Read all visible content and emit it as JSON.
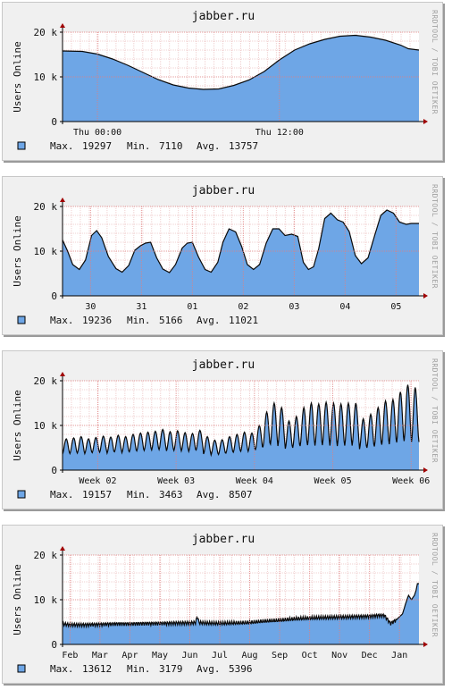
{
  "chart_data": [
    {
      "type": "area",
      "title": "jabber.ru",
      "ylabel": "Users Online",
      "watermark": "RRDTOOL / TOBI OETIKER",
      "ylim": [
        0,
        20000
      ],
      "y_ticks": [
        "0",
        "10 k",
        "20 k"
      ],
      "grid": true,
      "xlim": [
        -1.3,
        22.2
      ],
      "x_ticks": [
        {
          "label": "Thu 00:00",
          "pos": 1.0
        },
        {
          "label": "Thu 12:00",
          "pos": 13.0
        }
      ],
      "x_unit": "hours",
      "series": [
        {
          "name": "",
          "color": "#6ea6e6",
          "x": [
            -1.3,
            0,
            1,
            2,
            3,
            4,
            5,
            6,
            7,
            8,
            9,
            10,
            11,
            12,
            13,
            14,
            15,
            16,
            17,
            18,
            19,
            20,
            21,
            21.5,
            22.2
          ],
          "y": [
            15800,
            15700,
            15100,
            14000,
            12600,
            11000,
            9400,
            8200,
            7500,
            7200,
            7300,
            8100,
            9300,
            11200,
            13800,
            16000,
            17400,
            18400,
            19100,
            19300,
            18900,
            18200,
            17100,
            16300,
            16000
          ]
        }
      ],
      "legend": {
        "swatch_color": "#6ea6e6",
        "max_label": "Max.",
        "max": "19297",
        "min_label": "Min.",
        "min": "7110",
        "avg_label": "Avg.",
        "avg": "13757"
      }
    },
    {
      "type": "area",
      "title": "jabber.ru",
      "ylabel": "Users Online",
      "watermark": "RRDTOOL / TOBI OETIKER",
      "ylim": [
        0,
        20000
      ],
      "y_ticks": [
        "0",
        "10 k",
        "20 k"
      ],
      "grid": true,
      "xlim": [
        -0.55,
        6.45
      ],
      "x_ticks": [
        {
          "label": "30",
          "pos": 0
        },
        {
          "label": "31",
          "pos": 1
        },
        {
          "label": "01",
          "pos": 2
        },
        {
          "label": "02",
          "pos": 3
        },
        {
          "label": "03",
          "pos": 4
        },
        {
          "label": "04",
          "pos": 5
        },
        {
          "label": "05",
          "pos": 6
        }
      ],
      "x_unit": "days",
      "series": [
        {
          "name": "",
          "color": "#6ea6e6",
          "x": [
            -0.55,
            -0.45,
            -0.35,
            -0.22,
            -0.1,
            0.02,
            0.12,
            0.22,
            0.35,
            0.5,
            0.62,
            0.75,
            0.87,
            0.98,
            1.08,
            1.18,
            1.3,
            1.42,
            1.55,
            1.67,
            1.8,
            1.9,
            2.0,
            2.12,
            2.25,
            2.37,
            2.5,
            2.6,
            2.72,
            2.85,
            2.97,
            3.08,
            3.2,
            3.32,
            3.45,
            3.58,
            3.7,
            3.82,
            3.95,
            4.07,
            4.18,
            4.28,
            4.38,
            4.48,
            4.6,
            4.72,
            4.85,
            4.96,
            5.08,
            5.2,
            5.32,
            5.45,
            5.58,
            5.7,
            5.82,
            5.95,
            6.07,
            6.2,
            6.3,
            6.4,
            6.45
          ],
          "y": [
            12500,
            10000,
            7000,
            5900,
            8000,
            13500,
            14600,
            13000,
            8800,
            6100,
            5300,
            6800,
            10200,
            11200,
            11800,
            12000,
            8500,
            6000,
            5200,
            7000,
            10700,
            11800,
            12000,
            8700,
            5900,
            5300,
            7500,
            12000,
            15000,
            14300,
            11000,
            7000,
            5900,
            7000,
            11800,
            15000,
            15000,
            13500,
            13800,
            13300,
            7500,
            5900,
            6500,
            10500,
            17300,
            18500,
            17000,
            16500,
            14400,
            9000,
            7200,
            8500,
            13500,
            18000,
            19200,
            18500,
            16500,
            16000,
            16200,
            16200,
            16200
          ]
        }
      ],
      "legend": {
        "swatch_color": "#6ea6e6",
        "max_label": "Max.",
        "max": "19236",
        "min_label": "Min.",
        "min": "5166",
        "avg_label": "Avg.",
        "avg": "11021"
      }
    },
    {
      "type": "area",
      "title": "jabber.ru",
      "ylabel": "Users Online",
      "watermark": "RRDTOOL / TOBI OETIKER",
      "ylim": [
        0,
        20000
      ],
      "y_ticks": [
        "0",
        "10 k",
        "20 k"
      ],
      "grid": true,
      "xlim": [
        1.55,
        6.1
      ],
      "x_ticks": [
        {
          "label": "Week 02",
          "pos": 2
        },
        {
          "label": "Week 03",
          "pos": 3
        },
        {
          "label": "Week 04",
          "pos": 4
        },
        {
          "label": "Week 05",
          "pos": 5
        },
        {
          "label": "Week 06",
          "pos": 6
        }
      ],
      "x_unit": "weeks",
      "series": [
        {
          "name": "",
          "color": "#6ea6e6",
          "period_days": 1,
          "daily_peaks": [
            7000,
            7200,
            7500,
            7000,
            7300,
            7600,
            7400,
            7800,
            7500,
            8000,
            8300,
            8500,
            8700,
            9100,
            8600,
            8800,
            8400,
            8200,
            8900,
            7500,
            6700,
            6800,
            7500,
            8000,
            8500,
            8300,
            10000,
            13000,
            15000,
            14000,
            11000,
            12000,
            14000,
            15000,
            14800,
            15200,
            15000,
            14800,
            15000,
            15000,
            11500,
            12500,
            14000,
            15500,
            15800,
            17500,
            19100,
            18500
          ],
          "daily_troughs": [
            3600,
            3700,
            3800,
            3700,
            3900,
            4000,
            3800,
            4100,
            3900,
            4100,
            4300,
            4400,
            4500,
            4600,
            4300,
            4400,
            4300,
            4200,
            4500,
            3600,
            3400,
            3500,
            3800,
            4000,
            4200,
            4200,
            4600,
            5200,
            5800,
            5400,
            4800,
            5000,
            5400,
            5600,
            5500,
            5600,
            5500,
            5400,
            5500,
            5500,
            4700,
            5000,
            5300,
            5700,
            5800,
            6200,
            6500,
            6300
          ]
        }
      ],
      "legend": {
        "swatch_color": "#6ea6e6",
        "max_label": "Max.",
        "max": "19157",
        "min_label": "Min.",
        "min": "3463",
        "avg_label": "Avg.",
        "avg": "8507"
      }
    },
    {
      "type": "area",
      "title": "jabber.ru",
      "ylabel": "Users Online",
      "watermark": "RRDTOOL / TOBI OETIKER",
      "ylim": [
        0,
        20000
      ],
      "y_ticks": [
        "0",
        "10 k",
        "20 k"
      ],
      "grid": true,
      "xlim": [
        0.75,
        12.65
      ],
      "x_ticks": [
        {
          "label": "Feb",
          "pos": 1
        },
        {
          "label": "Mar",
          "pos": 2
        },
        {
          "label": "Apr",
          "pos": 3
        },
        {
          "label": "May",
          "pos": 4
        },
        {
          "label": "Jun",
          "pos": 5
        },
        {
          "label": "Jul",
          "pos": 6
        },
        {
          "label": "Aug",
          "pos": 7
        },
        {
          "label": "Sep",
          "pos": 8
        },
        {
          "label": "Oct",
          "pos": 9
        },
        {
          "label": "Nov",
          "pos": 10
        },
        {
          "label": "Dec",
          "pos": 11
        },
        {
          "label": "Jan",
          "pos": 12
        }
      ],
      "x_unit": "months",
      "series": [
        {
          "name": "",
          "color": "#6ea6e6",
          "x": [
            0.75,
            1.0,
            1.5,
            2.0,
            2.5,
            3.0,
            3.5,
            4.0,
            4.5,
            5.0,
            5.2,
            5.25,
            5.3,
            5.5,
            6.0,
            6.5,
            7.0,
            7.5,
            8.0,
            8.5,
            9.0,
            9.5,
            10.0,
            10.5,
            11.0,
            11.3,
            11.5,
            11.7,
            11.9,
            12.0,
            12.1,
            12.2,
            12.3,
            12.4,
            12.5,
            12.55,
            12.6,
            12.65
          ],
          "y": [
            4600,
            4400,
            4400,
            4500,
            4600,
            4600,
            4700,
            4700,
            4800,
            4800,
            4900,
            6500,
            4900,
            4800,
            4700,
            4800,
            4900,
            5200,
            5400,
            5700,
            5900,
            6000,
            6100,
            6200,
            6300,
            6500,
            6500,
            4700,
            5500,
            6200,
            6800,
            9000,
            11000,
            10000,
            11000,
            12000,
            13600,
            13600
          ],
          "ripple": 900
        }
      ],
      "legend": {
        "swatch_color": "#6ea6e6",
        "max_label": "Max.",
        "max": "13612",
        "min_label": "Min.",
        "min": "3179",
        "avg_label": "Avg.",
        "avg": "5396"
      }
    }
  ]
}
